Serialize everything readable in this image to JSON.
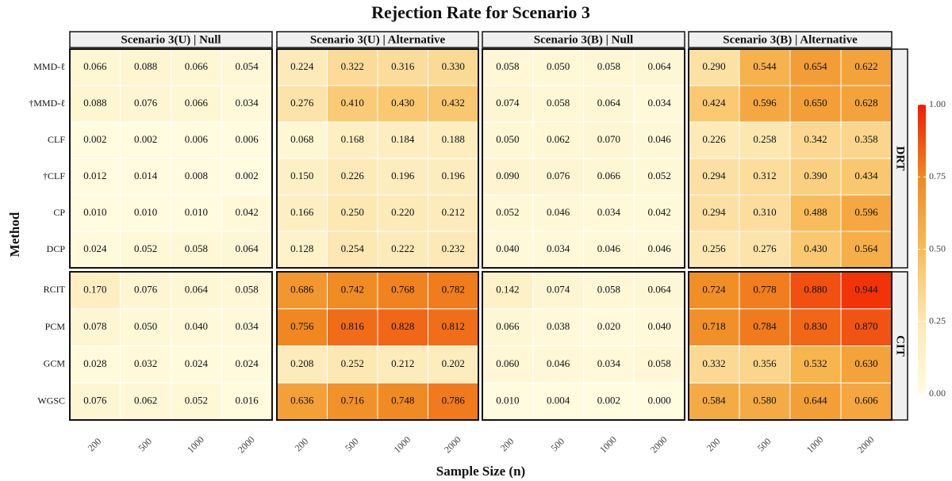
{
  "chart_data": {
    "type": "heatmap",
    "title": "Rejection Rate for Scenario 3",
    "xlabel": "Sample Size (n)",
    "ylabel": "Method",
    "categories": [
      "200",
      "500",
      "1000",
      "2000"
    ],
    "columns": [
      "Scenario 3(U) | Null",
      "Scenario 3(U) | Alternative",
      "Scenario 3(B) | Null",
      "Scenario 3(B) | Alternative"
    ],
    "rows": [
      {
        "name": "DRT",
        "methods": [
          "MMD-ℓ",
          "†MMD-ℓ",
          "CLF",
          "†CLF",
          "CP",
          "DCP"
        ]
      },
      {
        "name": "CIT",
        "methods": [
          "RCIT",
          "PCM",
          "GCM",
          "WGSC"
        ]
      }
    ],
    "colorbar": {
      "lim": [
        0,
        1
      ],
      "ticks": [
        {
          "value": 0,
          "label": "0.00"
        },
        {
          "value": 0.25,
          "label": "0.25"
        },
        {
          "value": 0.5,
          "label": "0.50"
        },
        {
          "value": 0.75,
          "label": "0.75"
        },
        {
          "value": 1,
          "label": "1.00"
        }
      ],
      "colors": [
        "#fffce0",
        "#fde8b4",
        "#f8bb55",
        "#f08a22",
        "#f21a00"
      ]
    },
    "panels": [
      [
        {
          "values": [
            [
              0.066,
              0.088,
              0.066,
              0.054
            ],
            [
              0.088,
              0.076,
              0.066,
              0.034
            ],
            [
              0.002,
              0.002,
              0.006,
              0.006
            ],
            [
              0.012,
              0.014,
              0.008,
              0.002
            ],
            [
              0.01,
              0.01,
              0.01,
              0.042
            ],
            [
              0.024,
              0.052,
              0.058,
              0.064
            ]
          ],
          "value_labels": [
            [
              "0.066",
              "0.088",
              "0.066",
              "0.054"
            ],
            [
              "0.088",
              "0.076",
              "0.066",
              "0.034"
            ],
            [
              "0.002",
              "0.002",
              "0.006",
              "0.006"
            ],
            [
              "0.012",
              "0.014",
              "0.008",
              "0.002"
            ],
            [
              "0.010",
              "0.010",
              "0.010",
              "0.042"
            ],
            [
              "0.024",
              "0.052",
              "0.058",
              "0.064"
            ]
          ]
        },
        {
          "values": [
            [
              0.224,
              0.322,
              0.316,
              0.33
            ],
            [
              0.276,
              0.41,
              0.43,
              0.432
            ],
            [
              0.068,
              0.168,
              0.184,
              0.188
            ],
            [
              0.15,
              0.226,
              0.196,
              0.196
            ],
            [
              0.166,
              0.25,
              0.22,
              0.212
            ],
            [
              0.128,
              0.254,
              0.222,
              0.232
            ]
          ],
          "value_labels": [
            [
              "0.224",
              "0.322",
              "0.316",
              "0.330"
            ],
            [
              "0.276",
              "0.410",
              "0.430",
              "0.432"
            ],
            [
              "0.068",
              "0.168",
              "0.184",
              "0.188"
            ],
            [
              "0.150",
              "0.226",
              "0.196",
              "0.196"
            ],
            [
              "0.166",
              "0.250",
              "0.220",
              "0.212"
            ],
            [
              "0.128",
              "0.254",
              "0.222",
              "0.232"
            ]
          ]
        },
        {
          "values": [
            [
              0.058,
              0.05,
              0.058,
              0.064
            ],
            [
              0.074,
              0.058,
              0.064,
              0.034
            ],
            [
              0.05,
              0.062,
              0.07,
              0.046
            ],
            [
              0.09,
              0.076,
              0.066,
              0.052
            ],
            [
              0.052,
              0.046,
              0.034,
              0.042
            ],
            [
              0.04,
              0.034,
              0.046,
              0.046
            ]
          ],
          "value_labels": [
            [
              "0.058",
              "0.050",
              "0.058",
              "0.064"
            ],
            [
              "0.074",
              "0.058",
              "0.064",
              "0.034"
            ],
            [
              "0.050",
              "0.062",
              "0.070",
              "0.046"
            ],
            [
              "0.090",
              "0.076",
              "0.066",
              "0.052"
            ],
            [
              "0.052",
              "0.046",
              "0.034",
              "0.042"
            ],
            [
              "0.040",
              "0.034",
              "0.046",
              "0.046"
            ]
          ]
        },
        {
          "values": [
            [
              0.29,
              0.544,
              0.654,
              0.622
            ],
            [
              0.424,
              0.596,
              0.65,
              0.628
            ],
            [
              0.226,
              0.258,
              0.342,
              0.358
            ],
            [
              0.294,
              0.312,
              0.39,
              0.434
            ],
            [
              0.294,
              0.31,
              0.488,
              0.596
            ],
            [
              0.256,
              0.276,
              0.43,
              0.564
            ]
          ],
          "value_labels": [
            [
              "0.290",
              "0.544",
              "0.654",
              "0.622"
            ],
            [
              "0.424",
              "0.596",
              "0.650",
              "0.628"
            ],
            [
              "0.226",
              "0.258",
              "0.342",
              "0.358"
            ],
            [
              "0.294",
              "0.312",
              "0.390",
              "0.434"
            ],
            [
              "0.294",
              "0.310",
              "0.488",
              "0.596"
            ],
            [
              "0.256",
              "0.276",
              "0.430",
              "0.564"
            ]
          ]
        }
      ],
      [
        {
          "values": [
            [
              0.17,
              0.076,
              0.064,
              0.058
            ],
            [
              0.078,
              0.05,
              0.04,
              0.034
            ],
            [
              0.028,
              0.032,
              0.024,
              0.024
            ],
            [
              0.076,
              0.062,
              0.052,
              0.016
            ]
          ],
          "value_labels": [
            [
              "0.170",
              "0.076",
              "0.064",
              "0.058"
            ],
            [
              "0.078",
              "0.050",
              "0.040",
              "0.034"
            ],
            [
              "0.028",
              "0.032",
              "0.024",
              "0.024"
            ],
            [
              "0.076",
              "0.062",
              "0.052",
              "0.016"
            ]
          ]
        },
        {
          "values": [
            [
              0.686,
              0.742,
              0.768,
              0.782
            ],
            [
              0.756,
              0.816,
              0.828,
              0.812
            ],
            [
              0.208,
              0.252,
              0.212,
              0.202
            ],
            [
              0.636,
              0.716,
              0.748,
              0.786
            ]
          ],
          "value_labels": [
            [
              "0.686",
              "0.742",
              "0.768",
              "0.782"
            ],
            [
              "0.756",
              "0.816",
              "0.828",
              "0.812"
            ],
            [
              "0.208",
              "0.252",
              "0.212",
              "0.202"
            ],
            [
              "0.636",
              "0.716",
              "0.748",
              "0.786"
            ]
          ]
        },
        {
          "values": [
            [
              0.142,
              0.074,
              0.058,
              0.064
            ],
            [
              0.066,
              0.038,
              0.02,
              0.04
            ],
            [
              0.06,
              0.046,
              0.034,
              0.058
            ],
            [
              0.01,
              0.004,
              0.002,
              0.0
            ]
          ],
          "value_labels": [
            [
              "0.142",
              "0.074",
              "0.058",
              "0.064"
            ],
            [
              "0.066",
              "0.038",
              "0.020",
              "0.040"
            ],
            [
              "0.060",
              "0.046",
              "0.034",
              "0.058"
            ],
            [
              "0.010",
              "0.004",
              "0.002",
              "0.000"
            ]
          ]
        },
        {
          "values": [
            [
              0.724,
              0.778,
              0.88,
              0.944
            ],
            [
              0.718,
              0.784,
              0.83,
              0.87
            ],
            [
              0.332,
              0.356,
              0.532,
              0.63
            ],
            [
              0.584,
              0.58,
              0.644,
              0.606
            ]
          ],
          "value_labels": [
            [
              "0.724",
              "0.778",
              "0.880",
              "0.944"
            ],
            [
              "0.718",
              "0.784",
              "0.830",
              "0.870"
            ],
            [
              "0.332",
              "0.356",
              "0.532",
              "0.630"
            ],
            [
              "0.584",
              "0.580",
              "0.644",
              "0.606"
            ]
          ]
        }
      ]
    ]
  }
}
